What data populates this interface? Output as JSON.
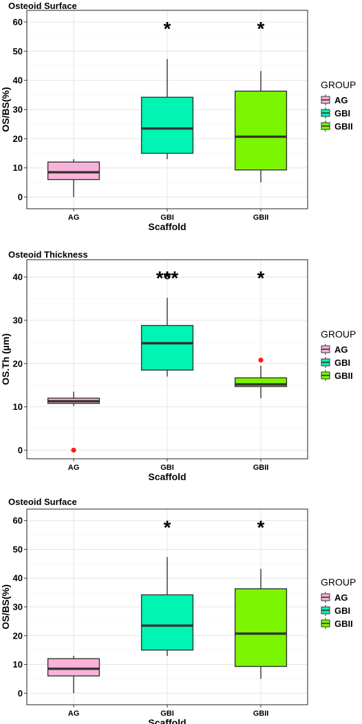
{
  "chart_data": [
    {
      "type": "box",
      "title": "Osteoid Surface",
      "xlabel": "Scaffold",
      "ylabel": "OS/BS(%)",
      "ylim": [
        -4,
        64
      ],
      "yticks": [
        0,
        10,
        20,
        30,
        40,
        50,
        60
      ],
      "grid": true,
      "legend": {
        "title": "GROUP",
        "position": "right"
      },
      "categories": [
        "AG",
        "GBI",
        "GBII"
      ],
      "boxes": [
        {
          "name": "AG",
          "color": "#F9B3D9",
          "whisker_low": 0,
          "q1": 6,
          "median": 8.5,
          "q3": 12,
          "whisker_high": 13,
          "outliers": [],
          "significance": ""
        },
        {
          "name": "GBI",
          "color": "#00F5B3",
          "whisker_low": 13,
          "q1": 15,
          "median": 23.5,
          "q3": 34.2,
          "whisker_high": 47.3,
          "outliers": [],
          "significance": "*"
        },
        {
          "name": "GBII",
          "color": "#7CF500",
          "whisker_low": 5,
          "q1": 9.3,
          "median": 20.7,
          "q3": 36.3,
          "whisker_high": 43.2,
          "outliers": [],
          "significance": "*"
        }
      ]
    },
    {
      "type": "box",
      "title": "Osteoid Thickness",
      "xlabel": "Scaffold",
      "ylabel": "OS.Th (µm)",
      "ylim": [
        -2,
        44
      ],
      "yticks": [
        0,
        10,
        20,
        30,
        40
      ],
      "grid": true,
      "legend": {
        "title": "GROUP",
        "position": "right"
      },
      "categories": [
        "AG",
        "GBI",
        "GBII"
      ],
      "boxes": [
        {
          "name": "AG",
          "color": "#F9B3D9",
          "whisker_low": 10.2,
          "q1": 10.8,
          "median": 11.3,
          "q3": 12,
          "whisker_high": 13.5,
          "outliers": [
            {
              "value": 0,
              "style": "red-dot"
            }
          ],
          "significance": ""
        },
        {
          "name": "GBI",
          "color": "#00F5B3",
          "whisker_low": 17,
          "q1": 18.5,
          "median": 24.7,
          "q3": 28.8,
          "whisker_high": 35.2,
          "outliers": [
            {
              "value": 40.2,
              "style": "hollow"
            }
          ],
          "significance": "***"
        },
        {
          "name": "GBII",
          "color": "#7CF500",
          "whisker_low": 12,
          "q1": 14.7,
          "median": 15.2,
          "q3": 16.7,
          "whisker_high": 19.5,
          "outliers": [
            {
              "value": 20.8,
              "style": "red-dot"
            }
          ],
          "significance": "*"
        }
      ]
    },
    {
      "type": "box",
      "title": "Osteoid Surface",
      "xlabel": "Scaffold",
      "ylabel": "OS/BS(%)",
      "ylim": [
        -4,
        64
      ],
      "yticks": [
        0,
        10,
        20,
        30,
        40,
        50,
        60
      ],
      "grid": true,
      "legend": {
        "title": "GROUP",
        "position": "right"
      },
      "categories": [
        "AG",
        "GBI",
        "GBII"
      ],
      "boxes": [
        {
          "name": "AG",
          "color": "#F9B3D9",
          "whisker_low": 0,
          "q1": 6,
          "median": 8.5,
          "q3": 12,
          "whisker_high": 13,
          "outliers": [],
          "significance": ""
        },
        {
          "name": "GBI",
          "color": "#00F5B3",
          "whisker_low": 13,
          "q1": 15,
          "median": 23.5,
          "q3": 34.2,
          "whisker_high": 47.3,
          "outliers": [],
          "significance": "*"
        },
        {
          "name": "GBII",
          "color": "#7CF500",
          "whisker_low": 5,
          "q1": 9.3,
          "median": 20.7,
          "q3": 36.3,
          "whisker_high": 43.2,
          "outliers": [],
          "significance": "*"
        }
      ]
    }
  ]
}
